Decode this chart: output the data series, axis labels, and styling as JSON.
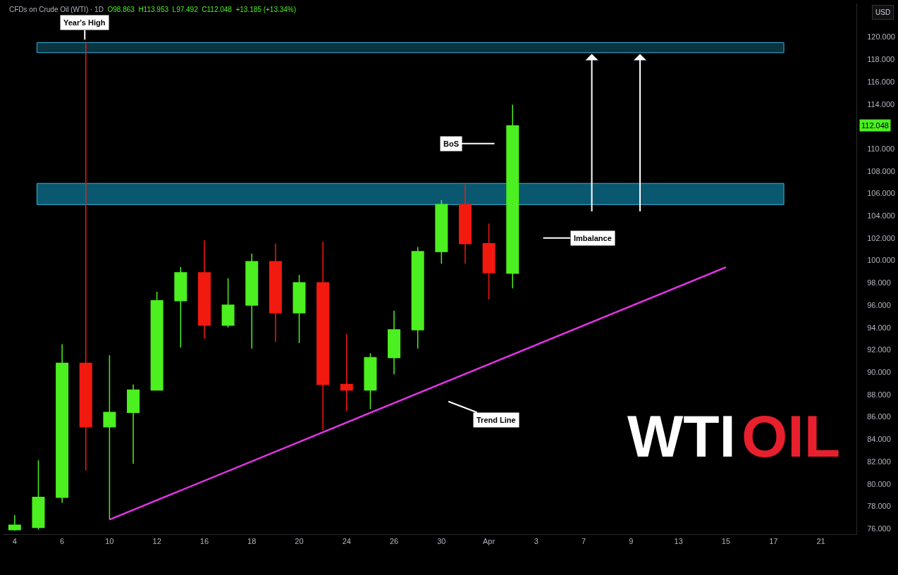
{
  "chart_data": {
    "type": "candlestick",
    "title": "CFDs on Crude Oil (WTI) · 1D",
    "subtitle": "O98.863  H113.953  L97.492  C112.048  +13.185 (+13.34%)",
    "ylabel": "USD",
    "categories": [
      "4",
      null,
      "6",
      null,
      "10",
      null,
      "12",
      null,
      "16",
      null,
      "18",
      null,
      "20",
      null,
      "24",
      null,
      "26",
      null,
      "30",
      null,
      "Apr",
      null,
      "3",
      null,
      "7",
      null,
      "9",
      null,
      "13",
      null,
      "15",
      null,
      "17",
      null,
      "21",
      null
    ],
    "ohlc": [
      [
        75.9,
        77.2,
        75.8,
        76.3
      ],
      [
        76.1,
        82.1,
        75.9,
        78.8
      ],
      [
        78.8,
        92.5,
        78.3,
        90.8
      ],
      [
        90.8,
        119.6,
        81.2,
        85.1
      ],
      [
        85.1,
        91.5,
        76.8,
        86.4
      ],
      [
        86.4,
        88.9,
        81.8,
        88.4
      ],
      [
        88.4,
        97.2,
        88.4,
        96.4
      ],
      [
        96.4,
        99.4,
        92.2,
        98.9
      ],
      [
        98.9,
        101.8,
        93.0,
        94.2
      ],
      [
        94.2,
        98.4,
        94.0,
        96.0
      ],
      [
        96.0,
        100.6,
        92.1,
        99.9
      ],
      [
        99.9,
        101.5,
        92.7,
        95.3
      ],
      [
        95.3,
        98.7,
        92.6,
        98.0
      ],
      [
        98.0,
        101.7,
        84.8,
        88.9
      ],
      [
        88.9,
        93.4,
        86.5,
        88.4
      ],
      [
        88.4,
        91.7,
        86.7,
        91.3
      ],
      [
        91.3,
        95.5,
        89.8,
        93.8
      ],
      [
        93.8,
        101.2,
        92.1,
        100.8
      ],
      [
        100.8,
        105.4,
        99.7,
        105.0
      ],
      [
        105.0,
        106.8,
        99.7,
        101.5
      ],
      [
        101.5,
        103.3,
        96.5,
        98.9
      ],
      [
        98.863,
        113.953,
        97.492,
        112.048
      ],
      null,
      null,
      null,
      null,
      null,
      null,
      null,
      null,
      null,
      null,
      null,
      null,
      null,
      null
    ],
    "colors": [
      "#4cef1f",
      "#4cef1f",
      "#4cef1f",
      "#f2190f",
      "#4cef1f",
      "#4cef1f",
      "#4cef1f",
      "#4cef1f",
      "#f2190f",
      "#4cef1f",
      "#4cef1f",
      "#f2190f",
      "#4cef1f",
      "#f2190f",
      "#f2190f",
      "#4cef1f",
      "#4cef1f",
      "#4cef1f",
      "#4cef1f",
      "#f2190f",
      "#f2190f",
      "#4cef1f",
      null,
      null,
      null,
      null,
      null,
      null,
      null,
      null,
      null,
      null,
      null,
      null,
      null,
      null
    ],
    "series": [
      {
        "type": "line",
        "x": [
          "10",
          "15"
        ],
        "values": [
          76.8,
          99.4
        ],
        "color": "#e234e6"
      }
    ],
    "bands": [
      {
        "axis": "y",
        "from": 118.6,
        "to": 119.5,
        "color": "#0b3442"
      },
      {
        "axis": "y",
        "from": 105.0,
        "to": 106.9,
        "color": "#0a5870"
      }
    ],
    "ylim": [
      75.5,
      123.0
    ],
    "yticks": [
      {
        "value": 76,
        "label": "76.000"
      },
      {
        "value": 78,
        "label": "78.000"
      },
      {
        "value": 80,
        "label": "80.000"
      },
      {
        "value": 82,
        "label": "82.000"
      },
      {
        "value": 84,
        "label": "84.000"
      },
      {
        "value": 86,
        "label": "86.000"
      },
      {
        "value": 88,
        "label": "88.000"
      },
      {
        "value": 90,
        "label": "90.000"
      },
      {
        "value": 92,
        "label": "92.000"
      },
      {
        "value": 94,
        "label": "94.000"
      },
      {
        "value": 96,
        "label": "96.000"
      },
      {
        "value": 98,
        "label": "98.000"
      },
      {
        "value": 100,
        "label": "100.000"
      },
      {
        "value": 102,
        "label": "102.000"
      },
      {
        "value": 104,
        "label": "104.000"
      },
      {
        "value": 106,
        "label": "106.000"
      },
      {
        "value": 108,
        "label": "108.000"
      },
      {
        "value": 110,
        "label": "110.000"
      },
      {
        "value": 114,
        "label": "114.000"
      },
      {
        "value": 116,
        "label": "116.000"
      },
      {
        "value": 118,
        "label": "118.000"
      },
      {
        "value": 120,
        "label": "120.000"
      }
    ],
    "annotations": [
      "Year's High",
      "BoS",
      "Imbalance",
      "Trend Line",
      "112.048",
      "WTI",
      "OIL"
    ],
    "grid": false
  }
}
